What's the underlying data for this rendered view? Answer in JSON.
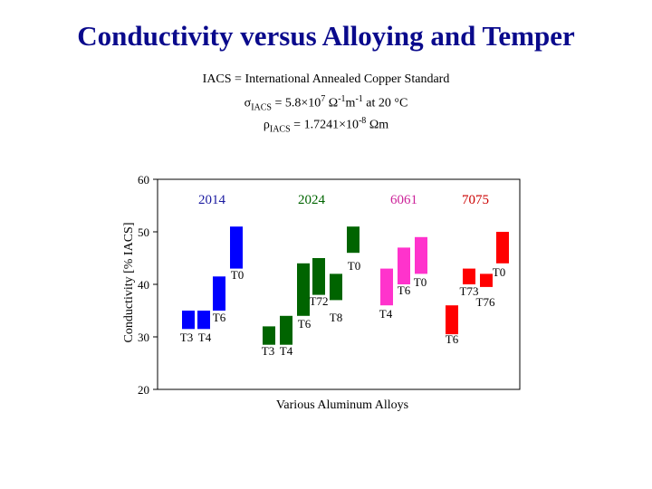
{
  "title": "Conductivity versus Alloying and Temper",
  "definitions": {
    "iacs_line": "IACS  =  International Annealed Copper Standard",
    "sigma_symbol": "σ",
    "sigma_sub": "IACS",
    "sigma_value": " = 5.8×10",
    "sigma_exp": "7",
    "sigma_unit_a": "  Ω",
    "sigma_unit_a_exp": "-1",
    "sigma_unit_b": "m",
    "sigma_unit_b_exp": "-1",
    "sigma_condition": " at 20 °C",
    "rho_symbol": "ρ",
    "rho_sub": "IACS",
    "rho_value": " = 1.7241×10",
    "rho_exp": "-8",
    "rho_unit": " Ωm"
  },
  "chart_data": {
    "type": "range-bar",
    "xlabel": "Various Aluminum Alloys",
    "ylabel": "Conductivity [% IACS]",
    "ylim": [
      20,
      60
    ],
    "yticks": [
      20,
      30,
      40,
      50,
      60
    ],
    "groups": [
      {
        "name": "2014",
        "color": "#0000ff",
        "label_color": "#1a1aa0",
        "bars": [
          {
            "temper": "T3",
            "low": 31.5,
            "high": 35
          },
          {
            "temper": "T4",
            "low": 31.5,
            "high": 35
          },
          {
            "temper": "T6",
            "low": 35,
            "high": 41.5
          },
          {
            "temper": "T0",
            "low": 43,
            "high": 51
          }
        ]
      },
      {
        "name": "2024",
        "color": "#006400",
        "label_color": "#006400",
        "bars": [
          {
            "temper": "T3",
            "low": 28.5,
            "high": 32
          },
          {
            "temper": "T4",
            "low": 28.5,
            "high": 34
          },
          {
            "temper": "T6",
            "low": 34,
            "high": 44
          },
          {
            "temper": "T72",
            "low": 38,
            "high": 45
          },
          {
            "temper": "T8",
            "low": 37,
            "high": 42
          },
          {
            "temper": "T0",
            "low": 46,
            "high": 51
          }
        ]
      },
      {
        "name": "6061",
        "color": "#ff33cc",
        "label_color": "#cc2299",
        "bars": [
          {
            "temper": "T4",
            "low": 36,
            "high": 43
          },
          {
            "temper": "T6",
            "low": 40,
            "high": 47
          },
          {
            "temper": "T0",
            "low": 42,
            "high": 49
          }
        ]
      },
      {
        "name": "7075",
        "color": "#ff0000",
        "label_color": "#cc0000",
        "bars": [
          {
            "temper": "T6",
            "low": 30.5,
            "high": 36
          },
          {
            "temper": "T73",
            "low": 40,
            "high": 43
          },
          {
            "temper": "T76",
            "low": 39.5,
            "high": 42
          },
          {
            "temper": "T0",
            "low": 44,
            "high": 50
          }
        ]
      }
    ]
  }
}
